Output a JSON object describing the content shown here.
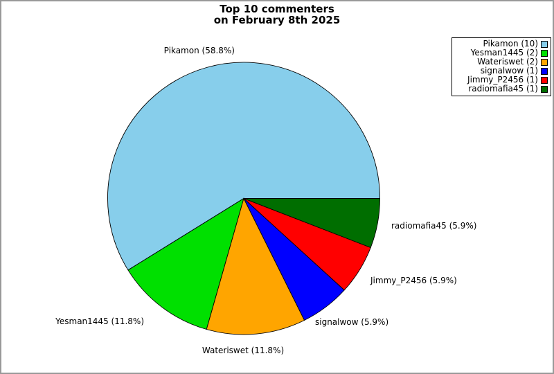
{
  "window": {
    "background": "#ffffff",
    "border_color": "#999999"
  },
  "title": {
    "line1": "Top 10 commenters",
    "line2": "on February 8th 2025"
  },
  "chart_data": {
    "type": "pie",
    "title": "Top 10 commenters on February 8th 2025",
    "categories": [
      "Pikamon",
      "Yesman1445",
      "Wateriswet",
      "signalwow",
      "Jimmy_P2456",
      "radiomafia45"
    ],
    "values": [
      10,
      2,
      2,
      1,
      1,
      1
    ],
    "percent_labels": [
      "58.8%",
      "11.8%",
      "11.8%",
      "5.9%",
      "5.9%",
      "5.9%"
    ],
    "slice_labels": [
      "Pikamon (58.8%)",
      "Yesman1445 (11.8%)",
      "Wateriswet (11.8%)",
      "signalwow (5.9%)",
      "Jimmy_P2456 (5.9%)",
      "radiomafia45 (5.9%)"
    ],
    "legend_labels": [
      "Pikamon (10)",
      "Yesman1445 (2)",
      "Wateriswet (2)",
      "signalwow (1)",
      "Jimmy_P2456 (1)",
      "radiomafia45 (1)"
    ],
    "colors": [
      "#87CEEB",
      "#00E000",
      "#FFA500",
      "#0000FF",
      "#FF0000",
      "#006E00"
    ],
    "slice_border_color": "#000000",
    "start_angle_deg": 0,
    "direction": "counterclockwise",
    "legend_position": "upper-right"
  }
}
